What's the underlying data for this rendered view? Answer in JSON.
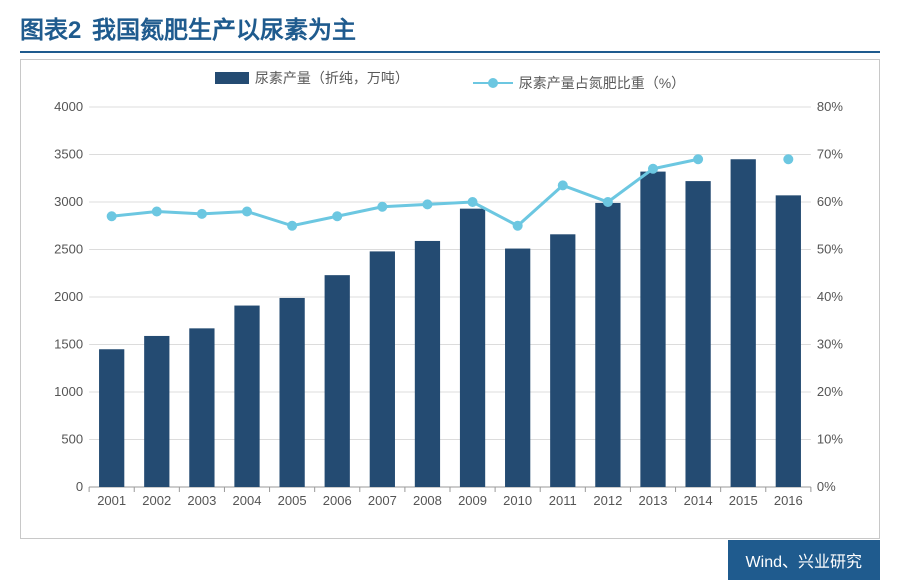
{
  "title": {
    "prefix": "图表2",
    "text": "我国氮肥生产以尿素为主",
    "color": "#1f5b8e",
    "underline_color": "#1f5b8e",
    "fontsize": 24
  },
  "legend": {
    "bar_label": "尿素产量（折纯，万吨）",
    "line_label": "尿素产量占氮肥比重（%）",
    "text_color": "#5a5a5a"
  },
  "chart": {
    "type": "bar+line",
    "categories": [
      "2001",
      "2002",
      "2003",
      "2004",
      "2005",
      "2006",
      "2007",
      "2008",
      "2009",
      "2010",
      "2011",
      "2012",
      "2013",
      "2014",
      "2015",
      "2016"
    ],
    "bars": {
      "values": [
        1450,
        1590,
        1670,
        1910,
        1990,
        2230,
        2480,
        2590,
        2930,
        2510,
        2660,
        2990,
        3320,
        3220,
        3450,
        3070
      ],
      "color": "#244b72",
      "width": 0.56
    },
    "line": {
      "values": [
        57,
        58,
        57.5,
        58,
        55,
        57,
        59,
        59.5,
        60,
        55,
        63.5,
        60,
        67,
        69,
        null,
        69
      ],
      "color": "#6cc7e1",
      "marker_size": 10,
      "line_width": 3
    },
    "y_left": {
      "min": 0,
      "max": 4000,
      "step": 500,
      "label_color": "#555"
    },
    "y_right": {
      "min": 0,
      "max": 80,
      "step": 10,
      "suffix": "%",
      "label_color": "#555"
    },
    "grid_color": "#dcdcdc",
    "axis_color": "#999999",
    "background": "#ffffff",
    "tick_fontsize": 13
  },
  "source": {
    "text": "Wind、兴业研究",
    "bg_color": "#1f5b8e",
    "text_color": "#ffffff"
  }
}
